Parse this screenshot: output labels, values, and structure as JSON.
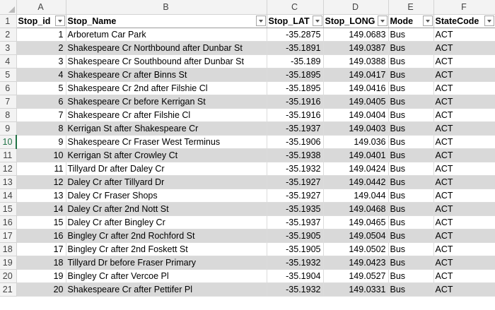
{
  "columns": [
    "A",
    "B",
    "C",
    "D",
    "E",
    "F"
  ],
  "headers": [
    "Stop_id",
    "Stop_Name",
    "Stop_LAT",
    "Stop_LONG",
    "Mode",
    "StateCode"
  ],
  "header_row_number": "1",
  "rows": [
    {
      "rn": "2",
      "id": "1",
      "name": "Arboretum Car Park",
      "lat": "-35.2875",
      "long": "149.0683",
      "mode": "Bus",
      "state": "ACT"
    },
    {
      "rn": "3",
      "id": "2",
      "name": "Shakespeare Cr Northbound after Dunbar St",
      "lat": "-35.1891",
      "long": "149.0387",
      "mode": "Bus",
      "state": "ACT"
    },
    {
      "rn": "4",
      "id": "3",
      "name": "Shakespeare Cr Southbound after Dunbar St",
      "lat": "-35.189",
      "long": "149.0388",
      "mode": "Bus",
      "state": "ACT"
    },
    {
      "rn": "5",
      "id": "4",
      "name": "Shakespeare Cr after Binns St",
      "lat": "-35.1895",
      "long": "149.0417",
      "mode": "Bus",
      "state": "ACT"
    },
    {
      "rn": "6",
      "id": "5",
      "name": "Shakespeare Cr 2nd after Filshie Cl",
      "lat": "-35.1895",
      "long": "149.0416",
      "mode": "Bus",
      "state": "ACT"
    },
    {
      "rn": "7",
      "id": "6",
      "name": "Shakespeare Cr before Kerrigan St",
      "lat": "-35.1916",
      "long": "149.0405",
      "mode": "Bus",
      "state": "ACT"
    },
    {
      "rn": "8",
      "id": "7",
      "name": "Shakespeare Cr after Filshie Cl",
      "lat": "-35.1916",
      "long": "149.0404",
      "mode": "Bus",
      "state": "ACT"
    },
    {
      "rn": "9",
      "id": "8",
      "name": "Kerrigan St after Shakespeare Cr",
      "lat": "-35.1937",
      "long": "149.0403",
      "mode": "Bus",
      "state": "ACT"
    },
    {
      "rn": "10",
      "id": "9",
      "name": "Shakespeare Cr Fraser West Terminus",
      "lat": "-35.1906",
      "long": "149.036",
      "mode": "Bus",
      "state": "ACT"
    },
    {
      "rn": "11",
      "id": "10",
      "name": "Kerrigan St after Crowley Ct",
      "lat": "-35.1938",
      "long": "149.0401",
      "mode": "Bus",
      "state": "ACT"
    },
    {
      "rn": "12",
      "id": "11",
      "name": "Tillyard Dr after Daley Cr",
      "lat": "-35.1932",
      "long": "149.0424",
      "mode": "Bus",
      "state": "ACT"
    },
    {
      "rn": "13",
      "id": "12",
      "name": "Daley Cr after Tillyard Dr",
      "lat": "-35.1927",
      "long": "149.0442",
      "mode": "Bus",
      "state": "ACT"
    },
    {
      "rn": "14",
      "id": "13",
      "name": "Daley Cr Fraser Shops",
      "lat": "-35.1927",
      "long": "149.044",
      "mode": "Bus",
      "state": "ACT"
    },
    {
      "rn": "15",
      "id": "14",
      "name": "Daley Cr after 2nd Nott St",
      "lat": "-35.1935",
      "long": "149.0468",
      "mode": "Bus",
      "state": "ACT"
    },
    {
      "rn": "16",
      "id": "15",
      "name": "Daley Cr after Bingley Cr",
      "lat": "-35.1937",
      "long": "149.0465",
      "mode": "Bus",
      "state": "ACT"
    },
    {
      "rn": "17",
      "id": "16",
      "name": "Bingley Cr after 2nd Rochford St",
      "lat": "-35.1905",
      "long": "149.0504",
      "mode": "Bus",
      "state": "ACT"
    },
    {
      "rn": "18",
      "id": "17",
      "name": "Bingley Cr after 2nd Foskett St",
      "lat": "-35.1905",
      "long": "149.0502",
      "mode": "Bus",
      "state": "ACT"
    },
    {
      "rn": "19",
      "id": "18",
      "name": "Tillyard Dr before Fraser Primary",
      "lat": "-35.1932",
      "long": "149.0423",
      "mode": "Bus",
      "state": "ACT"
    },
    {
      "rn": "20",
      "id": "19",
      "name": "Bingley Cr after Vercoe Pl",
      "lat": "-35.1904",
      "long": "149.0527",
      "mode": "Bus",
      "state": "ACT"
    },
    {
      "rn": "21",
      "id": "20",
      "name": "Shakespeare Cr after Pettifer Pl",
      "lat": "-35.1932",
      "long": "149.0331",
      "mode": "Bus",
      "state": "ACT"
    }
  ],
  "selected_row": "10",
  "colors": {
    "band": "#d9d9d9",
    "header_bg": "#f3f3f3",
    "selection": "#217346"
  }
}
